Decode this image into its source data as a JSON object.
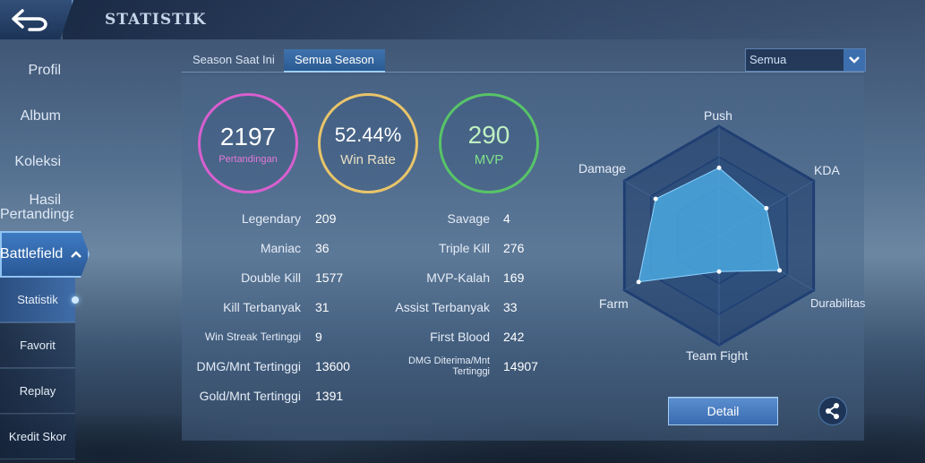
{
  "header": {
    "title": "STATISTIK"
  },
  "sidebar": {
    "items": [
      {
        "label": "Profil"
      },
      {
        "label": "Album"
      },
      {
        "label": "Koleksi"
      },
      {
        "label": "Hasil\nPertandingan"
      }
    ],
    "battlefield": {
      "label": "Battlefield"
    },
    "subitems": [
      {
        "label": "Statistik"
      },
      {
        "label": "Favorit"
      },
      {
        "label": "Replay"
      },
      {
        "label": "Kredit Skor"
      }
    ]
  },
  "tabs": [
    {
      "label": "Season Saat Ini"
    },
    {
      "label": "Semua Season"
    }
  ],
  "filter": {
    "selected": "Semua"
  },
  "summary": {
    "matches": {
      "value": "2197",
      "label": "Pertandingan"
    },
    "winrate": {
      "value": "52.44%",
      "label": "Win Rate"
    },
    "mvp": {
      "value": "290",
      "label": "MVP"
    }
  },
  "stats_left": [
    {
      "label": "Legendary",
      "value": "209"
    },
    {
      "label": "Maniac",
      "value": "36"
    },
    {
      "label": "Double Kill",
      "value": "1577"
    },
    {
      "label": "Kill Terbanyak",
      "value": "31"
    },
    {
      "label": "Win Streak Tertinggi",
      "value": "9"
    },
    {
      "label": "DMG/Mnt Tertinggi",
      "value": "13600"
    },
    {
      "label": "Gold/Mnt Tertinggi",
      "value": "1391"
    }
  ],
  "stats_right": [
    {
      "label": "Savage",
      "value": "4"
    },
    {
      "label": "Triple Kill",
      "value": "276"
    },
    {
      "label": "MVP-Kalah",
      "value": "169"
    },
    {
      "label": "Assist Terbanyak",
      "value": "33"
    },
    {
      "label": "First Blood",
      "value": "242"
    },
    {
      "label": "DMG Diterima/Mnt\nTertinggi",
      "value": "14907"
    }
  ],
  "radar": {
    "axes": [
      "Push",
      "KDA",
      "Durabilitas",
      "Team Fight",
      "Farm",
      "Damage"
    ],
    "values": [
      0.62,
      0.5,
      0.64,
      0.33,
      0.85,
      0.67
    ],
    "fill": "#4aa8e0",
    "grid": "#1f3f73"
  },
  "actions": {
    "detail": "Detail"
  },
  "colors": {
    "matches_ring": "#d85fcf",
    "winrate_ring": "#e8c56a",
    "mvp_ring": "#58c468",
    "matches_label": "#e47ad8",
    "mvp_value": "#bff0c2",
    "mvp_label": "#7fe08a",
    "accent": "#3f73ad"
  }
}
